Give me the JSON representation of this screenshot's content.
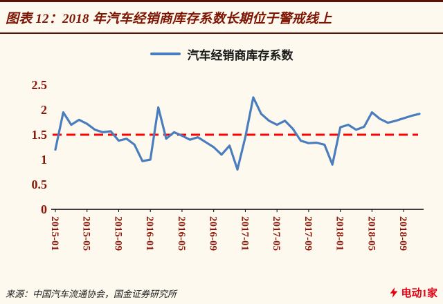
{
  "header": {
    "title": "图表 12：2018 年汽车经销商库存系数长期位于警戒线上"
  },
  "legend": {
    "label": "汽车经销商库存系数"
  },
  "chart_data": {
    "type": "line",
    "title": "2018 年汽车经销商库存系数长期位于警戒线上",
    "xlabel": "",
    "ylabel": "",
    "ylim": [
      0,
      2.5
    ],
    "yticks": [
      0,
      0.5,
      1,
      1.5,
      2,
      2.5
    ],
    "grid": false,
    "legend_position": "top",
    "line_color": "#4a7dbd",
    "warning_line": {
      "value": 1.5,
      "color": "#ff0000",
      "style": "dashed"
    },
    "x": [
      "2015-01",
      "2015-02",
      "2015-03",
      "2015-04",
      "2015-05",
      "2015-06",
      "2015-07",
      "2015-08",
      "2015-09",
      "2015-10",
      "2015-11",
      "2015-12",
      "2016-01",
      "2016-02",
      "2016-03",
      "2016-04",
      "2016-05",
      "2016-06",
      "2016-07",
      "2016-08",
      "2016-09",
      "2016-10",
      "2016-11",
      "2016-12",
      "2017-01",
      "2017-02",
      "2017-03",
      "2017-04",
      "2017-05",
      "2017-06",
      "2017-07",
      "2017-08",
      "2017-09",
      "2017-10",
      "2017-11",
      "2017-12",
      "2018-01",
      "2018-02",
      "2018-03",
      "2018-04",
      "2018-05",
      "2018-06",
      "2018-07",
      "2018-08",
      "2018-09",
      "2018-10",
      "2018-11"
    ],
    "xticks": [
      "2015-01",
      "2015-05",
      "2015-09",
      "2016-01",
      "2016-05",
      "2016-09",
      "2017-01",
      "2017-05",
      "2017-09",
      "2018-01",
      "2018-05",
      "2018-09"
    ],
    "series": [
      {
        "name": "汽车经销商库存系数",
        "values": [
          1.2,
          1.95,
          1.7,
          1.8,
          1.72,
          1.6,
          1.55,
          1.57,
          1.38,
          1.42,
          1.3,
          0.97,
          1.0,
          2.05,
          1.42,
          1.55,
          1.48,
          1.4,
          1.45,
          1.35,
          1.25,
          1.1,
          1.28,
          0.8,
          1.45,
          2.25,
          1.92,
          1.78,
          1.7,
          1.78,
          1.62,
          1.38,
          1.33,
          1.34,
          1.3,
          0.9,
          1.65,
          1.7,
          1.6,
          1.66,
          1.95,
          1.82,
          1.74,
          1.78,
          1.83,
          1.88,
          1.92
        ]
      }
    ]
  },
  "footer": {
    "source": "来源：中国汽车流通协会，国金证券研究所"
  },
  "watermark": {
    "text": "电动1家",
    "color": "#e60012"
  }
}
